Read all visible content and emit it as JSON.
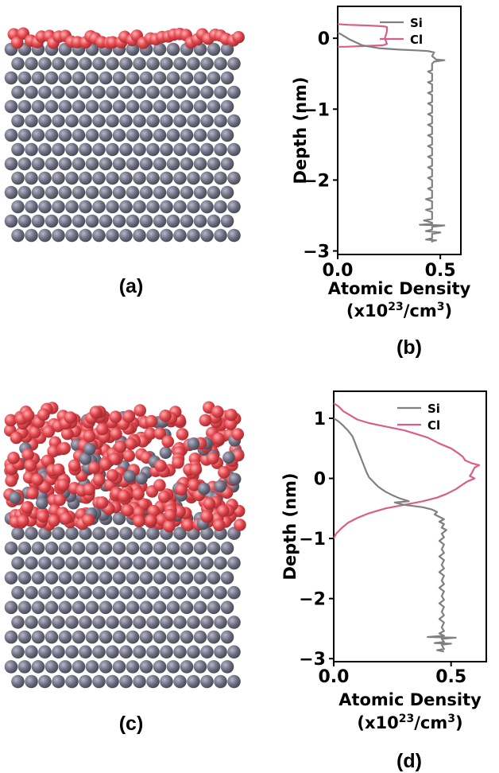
{
  "colors": {
    "si_atom": "#6e6e82",
    "si_atom_light": "#a9a9bb",
    "cl_atom": "#e24a4f",
    "cl_atom_light": "#ff9aa0",
    "si_line": "#808080",
    "cl_line": "#d95f8a"
  },
  "labels": {
    "a": "(a)",
    "b": "(b)",
    "c": "(c)",
    "d": "(d)"
  },
  "chart_data": [
    {
      "id": "b",
      "type": "line",
      "xlabel": "Atomic Density",
      "xunit_prefix": "(x10",
      "xunit_exp": "23",
      "xunit_mid": "/cm",
      "xunit_exp2": "3",
      "xunit_suffix": ")",
      "ylabel": "Depth (nm)",
      "xlim": [
        0.0,
        0.6
      ],
      "ylim": [
        -3.05,
        0.45
      ],
      "xticks": [
        0.0,
        0.5
      ],
      "xtick_labels": [
        "0.0",
        "0.5"
      ],
      "yticks": [
        0,
        -1,
        -2,
        -3
      ],
      "ytick_labels": [
        "0",
        "−1",
        "−2",
        "−3"
      ],
      "legend": {
        "placement": "top-right",
        "entries": [
          "Si",
          "Cl"
        ]
      },
      "series": [
        {
          "name": "Cl",
          "color": "#d95f8a",
          "points": [
            [
              0.0,
              0.2
            ],
            [
              0.05,
              0.19
            ],
            [
              0.15,
              0.18
            ],
            [
              0.22,
              0.17
            ],
            [
              0.24,
              0.16
            ],
            [
              0.24,
              0.1
            ],
            [
              0.23,
              0.0
            ],
            [
              0.24,
              -0.08
            ],
            [
              0.22,
              -0.1
            ],
            [
              0.12,
              -0.11
            ],
            [
              0.04,
              -0.12
            ],
            [
              0.0,
              -0.12
            ]
          ]
        },
        {
          "name": "Si",
          "color": "#808080",
          "points": [
            [
              0.0,
              0.08
            ],
            [
              0.02,
              0.05
            ],
            [
              0.06,
              -0.02
            ],
            [
              0.12,
              -0.1
            ],
            [
              0.2,
              -0.14
            ],
            [
              0.3,
              -0.16
            ],
            [
              0.38,
              -0.17
            ],
            [
              0.44,
              -0.18
            ],
            [
              0.47,
              -0.2
            ],
            [
              0.46,
              -0.25
            ],
            [
              0.48,
              -0.3
            ],
            [
              0.52,
              -0.31
            ],
            [
              0.47,
              -0.33
            ],
            [
              0.46,
              -0.36
            ],
            [
              0.46,
              -0.45
            ],
            [
              0.44,
              -0.47
            ],
            [
              0.46,
              -0.5
            ],
            [
              0.46,
              -0.6
            ],
            [
              0.44,
              -0.62
            ],
            [
              0.46,
              -0.65
            ],
            [
              0.46,
              -0.75
            ],
            [
              0.44,
              -0.77
            ],
            [
              0.46,
              -0.8
            ],
            [
              0.46,
              -0.9
            ],
            [
              0.44,
              -0.92
            ],
            [
              0.46,
              -0.95
            ],
            [
              0.46,
              -1.05
            ],
            [
              0.44,
              -1.07
            ],
            [
              0.46,
              -1.1
            ],
            [
              0.46,
              -1.2
            ],
            [
              0.44,
              -1.22
            ],
            [
              0.46,
              -1.25
            ],
            [
              0.46,
              -1.35
            ],
            [
              0.44,
              -1.37
            ],
            [
              0.46,
              -1.4
            ],
            [
              0.46,
              -1.5
            ],
            [
              0.44,
              -1.52
            ],
            [
              0.46,
              -1.55
            ],
            [
              0.46,
              -1.65
            ],
            [
              0.44,
              -1.67
            ],
            [
              0.46,
              -1.7
            ],
            [
              0.46,
              -1.8
            ],
            [
              0.44,
              -1.82
            ],
            [
              0.46,
              -1.85
            ],
            [
              0.46,
              -1.95
            ],
            [
              0.44,
              -1.97
            ],
            [
              0.46,
              -2.0
            ],
            [
              0.46,
              -2.1
            ],
            [
              0.44,
              -2.12
            ],
            [
              0.46,
              -2.15
            ],
            [
              0.46,
              -2.25
            ],
            [
              0.43,
              -2.27
            ],
            [
              0.46,
              -2.3
            ],
            [
              0.46,
              -2.4
            ],
            [
              0.43,
              -2.42
            ],
            [
              0.46,
              -2.45
            ],
            [
              0.46,
              -2.55
            ],
            [
              0.42,
              -2.57
            ],
            [
              0.46,
              -2.6
            ],
            [
              0.46,
              -2.62
            ],
            [
              0.4,
              -2.63
            ],
            [
              0.52,
              -2.64
            ],
            [
              0.46,
              -2.66
            ],
            [
              0.46,
              -2.7
            ],
            [
              0.43,
              -2.72
            ],
            [
              0.5,
              -2.74
            ],
            [
              0.46,
              -2.76
            ],
            [
              0.46,
              -2.82
            ],
            [
              0.43,
              -2.84
            ],
            [
              0.48,
              -2.85
            ],
            [
              0.46,
              -2.86
            ],
            [
              0.46,
              -2.88
            ]
          ]
        }
      ]
    },
    {
      "id": "d",
      "type": "line",
      "xlabel": "Atomic Density",
      "xunit_prefix": "(x10",
      "xunit_exp": "23",
      "xunit_mid": "/cm",
      "xunit_exp2": "3",
      "xunit_suffix": ")",
      "ylabel": "Depth (nm)",
      "xlim": [
        0.0,
        0.65
      ],
      "ylim": [
        -3.05,
        1.45
      ],
      "xticks": [
        0.0,
        0.5
      ],
      "xtick_labels": [
        "0.0",
        "0.5"
      ],
      "yticks": [
        1,
        0,
        -1,
        -2,
        -3
      ],
      "ytick_labels": [
        "1",
        "0",
        "−1",
        "−2",
        "−3"
      ],
      "legend": {
        "placement": "top-right",
        "entries": [
          "Si",
          "Cl"
        ]
      },
      "series": [
        {
          "name": "Cl",
          "color": "#d95f8a",
          "points": [
            [
              0.0,
              1.25
            ],
            [
              0.02,
              1.2
            ],
            [
              0.04,
              1.12
            ],
            [
              0.07,
              1.05
            ],
            [
              0.1,
              0.98
            ],
            [
              0.15,
              0.92
            ],
            [
              0.2,
              0.88
            ],
            [
              0.25,
              0.84
            ],
            [
              0.3,
              0.8
            ],
            [
              0.35,
              0.74
            ],
            [
              0.4,
              0.68
            ],
            [
              0.45,
              0.58
            ],
            [
              0.5,
              0.5
            ],
            [
              0.53,
              0.42
            ],
            [
              0.55,
              0.36
            ],
            [
              0.56,
              0.3
            ],
            [
              0.59,
              0.25
            ],
            [
              0.62,
              0.22
            ],
            [
              0.6,
              0.18
            ],
            [
              0.59,
              0.1
            ],
            [
              0.58,
              0.04
            ],
            [
              0.6,
              0.0
            ],
            [
              0.57,
              -0.05
            ],
            [
              0.55,
              -0.1
            ],
            [
              0.52,
              -0.18
            ],
            [
              0.48,
              -0.26
            ],
            [
              0.44,
              -0.32
            ],
            [
              0.38,
              -0.38
            ],
            [
              0.3,
              -0.44
            ],
            [
              0.22,
              -0.5
            ],
            [
              0.15,
              -0.58
            ],
            [
              0.1,
              -0.66
            ],
            [
              0.06,
              -0.74
            ],
            [
              0.03,
              -0.84
            ],
            [
              0.01,
              -0.92
            ],
            [
              0.0,
              -1.0
            ]
          ]
        },
        {
          "name": "Si",
          "color": "#808080",
          "points": [
            [
              0.0,
              1.0
            ],
            [
              0.02,
              0.95
            ],
            [
              0.04,
              0.88
            ],
            [
              0.06,
              0.8
            ],
            [
              0.08,
              0.7
            ],
            [
              0.09,
              0.6
            ],
            [
              0.1,
              0.5
            ],
            [
              0.11,
              0.4
            ],
            [
              0.12,
              0.3
            ],
            [
              0.13,
              0.2
            ],
            [
              0.14,
              0.1
            ],
            [
              0.15,
              0.02
            ],
            [
              0.17,
              -0.06
            ],
            [
              0.19,
              -0.14
            ],
            [
              0.22,
              -0.22
            ],
            [
              0.25,
              -0.28
            ],
            [
              0.28,
              -0.33
            ],
            [
              0.32,
              -0.38
            ],
            [
              0.26,
              -0.4
            ],
            [
              0.3,
              -0.44
            ],
            [
              0.34,
              -0.46
            ],
            [
              0.38,
              -0.48
            ],
            [
              0.42,
              -0.52
            ],
            [
              0.44,
              -0.56
            ],
            [
              0.43,
              -0.6
            ],
            [
              0.45,
              -0.64
            ],
            [
              0.47,
              -0.68
            ],
            [
              0.45,
              -0.72
            ],
            [
              0.47,
              -0.76
            ],
            [
              0.46,
              -0.82
            ],
            [
              0.48,
              -0.86
            ],
            [
              0.46,
              -0.92
            ],
            [
              0.47,
              -0.98
            ],
            [
              0.45,
              -1.04
            ],
            [
              0.47,
              -1.1
            ],
            [
              0.46,
              -1.18
            ],
            [
              0.47,
              -1.24
            ],
            [
              0.45,
              -1.3
            ],
            [
              0.47,
              -1.36
            ],
            [
              0.46,
              -1.44
            ],
            [
              0.47,
              -1.5
            ],
            [
              0.45,
              -1.56
            ],
            [
              0.47,
              -1.62
            ],
            [
              0.46,
              -1.7
            ],
            [
              0.47,
              -1.76
            ],
            [
              0.45,
              -1.82
            ],
            [
              0.47,
              -1.88
            ],
            [
              0.46,
              -1.96
            ],
            [
              0.47,
              -2.02
            ],
            [
              0.45,
              -2.08
            ],
            [
              0.47,
              -2.14
            ],
            [
              0.46,
              -2.22
            ],
            [
              0.47,
              -2.28
            ],
            [
              0.45,
              -2.34
            ],
            [
              0.47,
              -2.4
            ],
            [
              0.46,
              -2.48
            ],
            [
              0.47,
              -2.54
            ],
            [
              0.45,
              -2.58
            ],
            [
              0.47,
              -2.62
            ],
            [
              0.4,
              -2.64
            ],
            [
              0.52,
              -2.65
            ],
            [
              0.46,
              -2.67
            ],
            [
              0.47,
              -2.72
            ],
            [
              0.43,
              -2.74
            ],
            [
              0.5,
              -2.75
            ],
            [
              0.46,
              -2.77
            ],
            [
              0.47,
              -2.84
            ],
            [
              0.44,
              -2.86
            ],
            [
              0.47,
              -2.88
            ]
          ]
        }
      ]
    }
  ]
}
